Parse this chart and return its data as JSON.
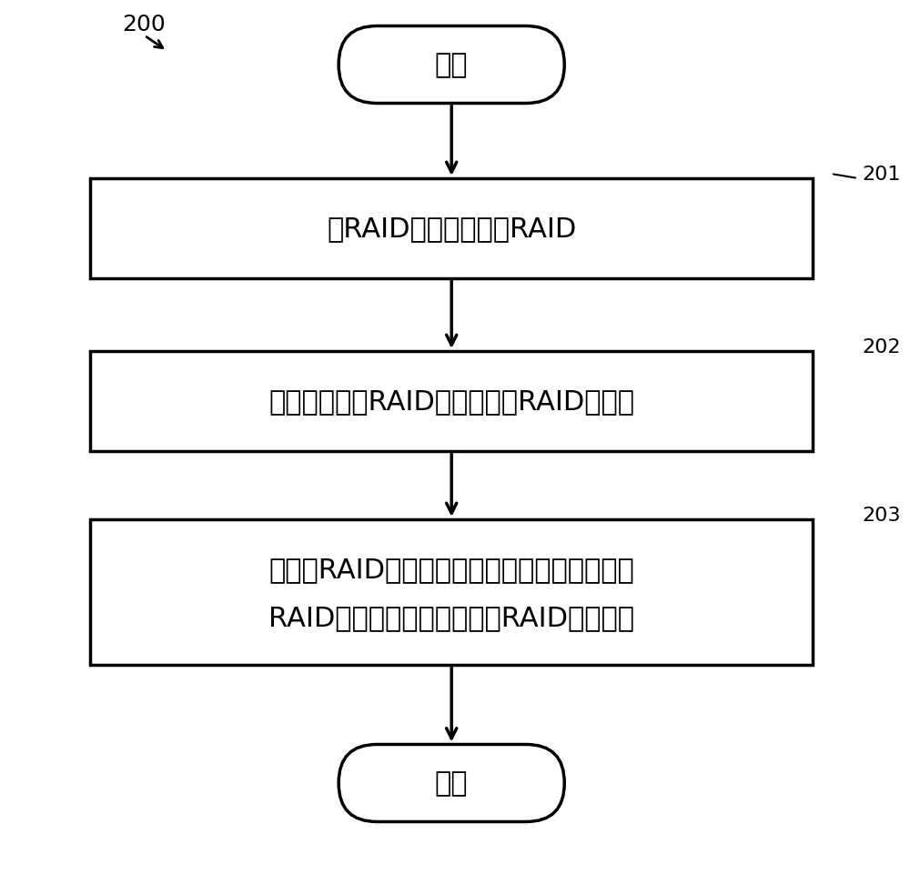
{
  "bg_color": "#ffffff",
  "line_color": "#000000",
  "fill_color": "#ffffff",
  "fig_label": "200",
  "start_text": "开始",
  "end_text": "结束",
  "box1_text": "将RAID划分为多个子RAID",
  "box2_text": "生成与每个子RAID相对应的子RAID元数据",
  "box3_text_line1": "响应于RAID中的一个磁盘被更换，基于每个子",
  "box3_text_line2": "RAID元数据来重构对应的子RAID中的数据",
  "label201": "201",
  "label202": "202",
  "label203": "203",
  "font_size_main": 22,
  "font_size_label": 16,
  "font_size_fig_label": 18
}
